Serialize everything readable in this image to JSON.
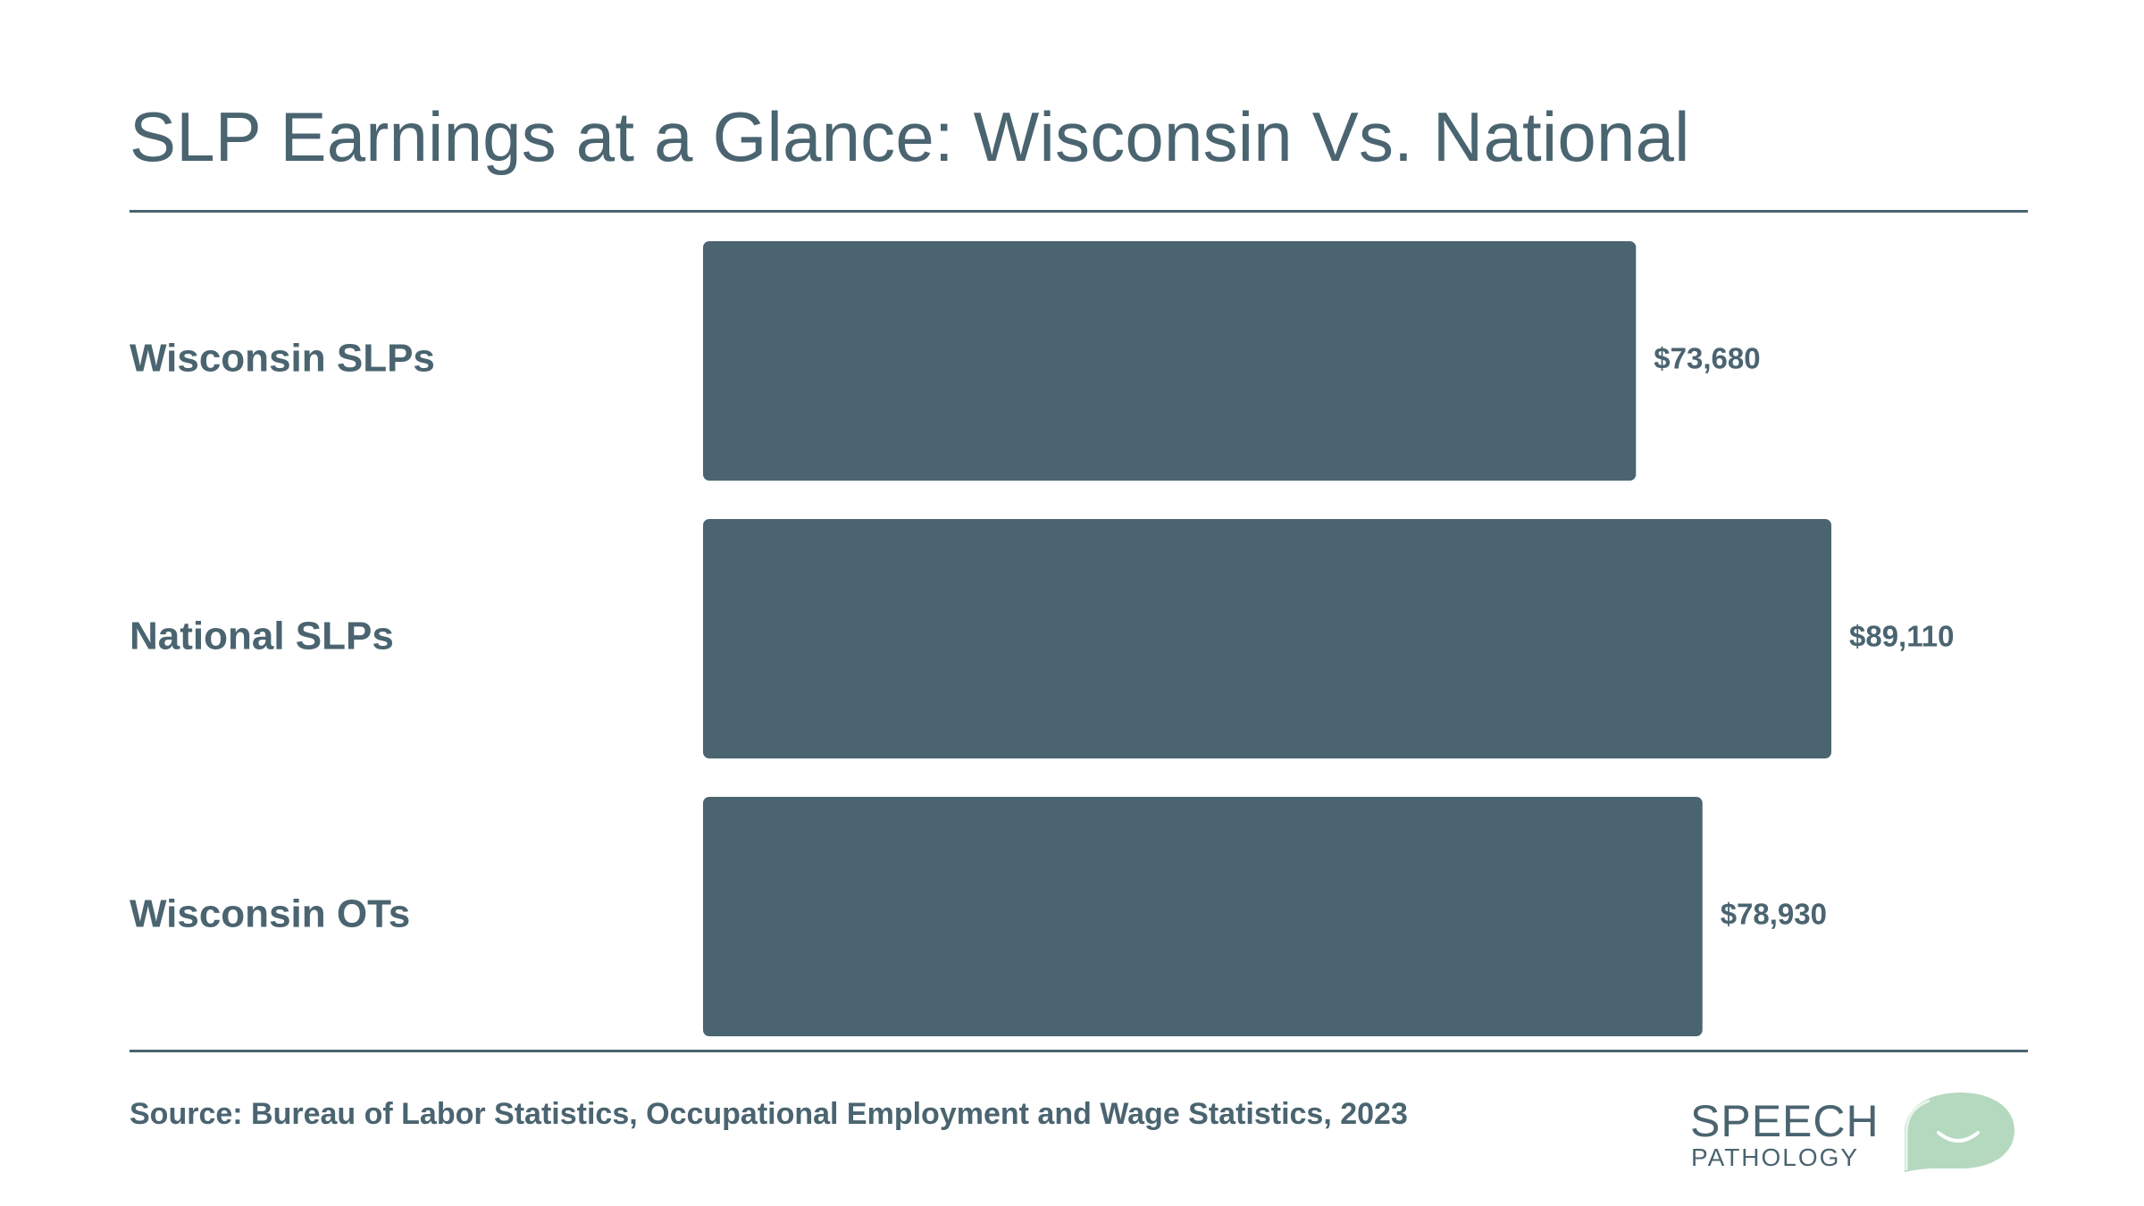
{
  "title": "SLP Earnings at a Glance: Wisconsin Vs. National",
  "source": "Source: Bureau of Labor Statistics, Occupational Employment and Wage Statistics, 2023",
  "logo": {
    "line1": "SPEECH",
    "line2": "PATHOLOGY",
    "accent_color": "#b5d9bf",
    "icon": "speech-bubble-smile-icon"
  },
  "colors": {
    "bar": "#4a6470",
    "text": "#4a6470"
  },
  "chart_data": {
    "type": "bar",
    "orientation": "horizontal",
    "categories": [
      "Wisconsin SLPs",
      "National SLPs",
      "Wisconsin OTs"
    ],
    "values": [
      73680,
      89110,
      78930
    ],
    "value_labels": [
      "$73,680",
      "$89,110",
      "$78,930"
    ],
    "xlim": [
      0,
      89110
    ],
    "grid": false,
    "legend": "none"
  }
}
